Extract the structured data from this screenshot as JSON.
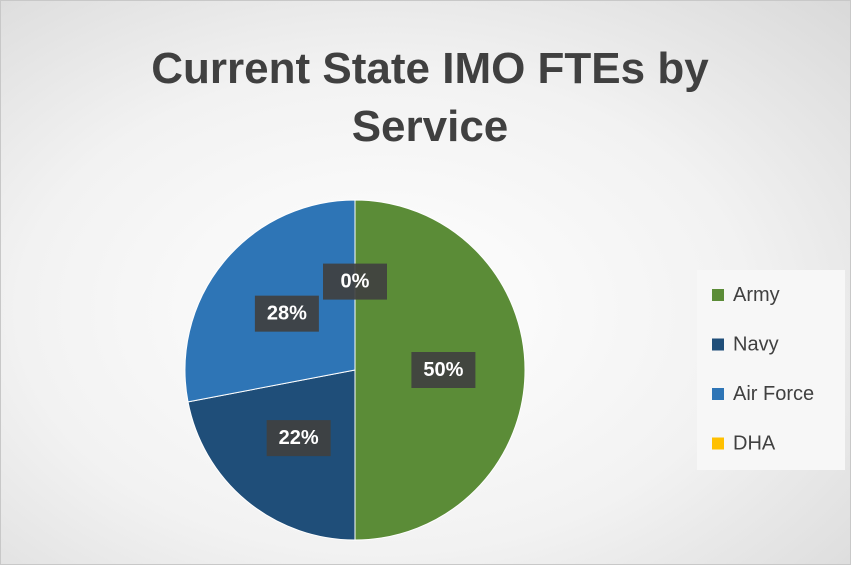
{
  "chart_data": {
    "type": "pie",
    "title": "Current State IMO FTEs by Service",
    "categories": [
      "Army",
      "Navy",
      "Air Force",
      "DHA"
    ],
    "values": [
      50,
      22,
      28,
      0
    ],
    "value_labels": [
      "50%",
      "22%",
      "28%",
      "0%"
    ],
    "colors": [
      "#5b8c37",
      "#1f4e79",
      "#2e75b6",
      "#ffc000"
    ],
    "legend": "right"
  }
}
